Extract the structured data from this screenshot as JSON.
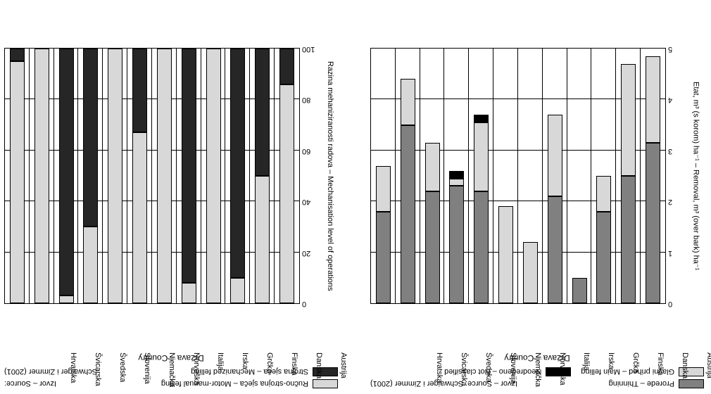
{
  "colors": {
    "light": "#d8d8d8",
    "mid": "#808080",
    "dark": "#262626",
    "black": "#000000",
    "bg": "#ffffff",
    "grid": "#000000"
  },
  "left": {
    "title": "Država – Country",
    "ylabel": "Etat, m³ (s korom) ha⁻¹ – Removal, m³ (over bark) ha⁻¹",
    "ylim": [
      0,
      5
    ],
    "ytick_step": 1,
    "legend": [
      {
        "label": "Prorede – Thinning",
        "color": "#808080"
      },
      {
        "label": "Glavni prihod – Main felling",
        "color": "#d8d8d8"
      },
      {
        "label": "Neodređeno – Not classified",
        "color": "#000000"
      }
    ],
    "source": "Izvor – Source: Schwaiger i Zimmer (2001)",
    "categories": [
      "Austrija",
      "Danska",
      "Finska",
      "Grčka",
      "Irska",
      "Italija",
      "Norveška",
      "Njemačka",
      "Slovenija",
      "Švedska",
      "Švicarska",
      "Hrvatska"
    ],
    "segments": [
      [
        {
          "v": 3.15,
          "c": "#808080"
        },
        {
          "v": 1.7,
          "c": "#d8d8d8"
        }
      ],
      [
        {
          "v": 2.5,
          "c": "#808080"
        },
        {
          "v": 2.2,
          "c": "#d8d8d8"
        }
      ],
      [
        {
          "v": 1.8,
          "c": "#808080"
        },
        {
          "v": 0.7,
          "c": "#d8d8d8"
        }
      ],
      [
        {
          "v": 0.5,
          "c": "#808080"
        }
      ],
      [
        {
          "v": 2.1,
          "c": "#808080"
        },
        {
          "v": 1.6,
          "c": "#d8d8d8"
        }
      ],
      [
        {
          "v": 1.2,
          "c": "#d8d8d8"
        }
      ],
      [
        {
          "v": 1.9,
          "c": "#d8d8d8"
        }
      ],
      [
        {
          "v": 2.2,
          "c": "#808080"
        },
        {
          "v": 1.35,
          "c": "#d8d8d8"
        },
        {
          "v": 0.15,
          "c": "#000000"
        }
      ],
      [
        {
          "v": 2.3,
          "c": "#808080"
        },
        {
          "v": 0.15,
          "c": "#d8d8d8"
        },
        {
          "v": 0.15,
          "c": "#000000"
        }
      ],
      [
        {
          "v": 2.2,
          "c": "#808080"
        },
        {
          "v": 0.95,
          "c": "#d8d8d8"
        }
      ],
      [
        {
          "v": 3.5,
          "c": "#808080"
        },
        {
          "v": 0.9,
          "c": "#d8d8d8"
        }
      ],
      [
        {
          "v": 1.8,
          "c": "#808080"
        },
        {
          "v": 0.9,
          "c": "#d8d8d8"
        }
      ]
    ]
  },
  "right": {
    "title": "Država – Country",
    "ylabel": "Razina mehaniziranosti radova – Mechanisation level of operations",
    "ylim": [
      0,
      100
    ],
    "ytick_step": 20,
    "legend": [
      {
        "label": "Ručno-strojna sječa – Motor-manual felling",
        "color": "#d8d8d8"
      },
      {
        "label": "Strojna sječa – Mechanized felling",
        "color": "#262626"
      }
    ],
    "source": "Izvor – Source:",
    "source2": "Schwaiger i Zimmer (2001)",
    "categories": [
      "Austrija",
      "Danska",
      "Finska",
      "Grčka",
      "Irska",
      "Italija",
      "Norveška",
      "Njemačka",
      "Slovenija",
      "Švedska",
      "Švicarska",
      "Hrvatska"
    ],
    "segments": [
      [
        {
          "v": 86,
          "c": "#d8d8d8"
        },
        {
          "v": 14,
          "c": "#262626"
        }
      ],
      [
        {
          "v": 50,
          "c": "#d8d8d8"
        },
        {
          "v": 50,
          "c": "#262626"
        }
      ],
      [
        {
          "v": 10,
          "c": "#d8d8d8"
        },
        {
          "v": 90,
          "c": "#262626"
        }
      ],
      [
        {
          "v": 100,
          "c": "#d8d8d8"
        }
      ],
      [
        {
          "v": 8,
          "c": "#d8d8d8"
        },
        {
          "v": 92,
          "c": "#262626"
        }
      ],
      [
        {
          "v": 100,
          "c": "#d8d8d8"
        }
      ],
      [
        {
          "v": 67,
          "c": "#d8d8d8"
        },
        {
          "v": 33,
          "c": "#262626"
        }
      ],
      [
        {
          "v": 100,
          "c": "#d8d8d8"
        }
      ],
      [
        {
          "v": 30,
          "c": "#d8d8d8"
        },
        {
          "v": 70,
          "c": "#262626"
        }
      ],
      [
        {
          "v": 3,
          "c": "#d8d8d8"
        },
        {
          "v": 97,
          "c": "#262626"
        }
      ],
      [
        {
          "v": 100,
          "c": "#d8d8d8"
        }
      ],
      [
        {
          "v": 95,
          "c": "#d8d8d8"
        },
        {
          "v": 5,
          "c": "#262626"
        }
      ]
    ]
  }
}
